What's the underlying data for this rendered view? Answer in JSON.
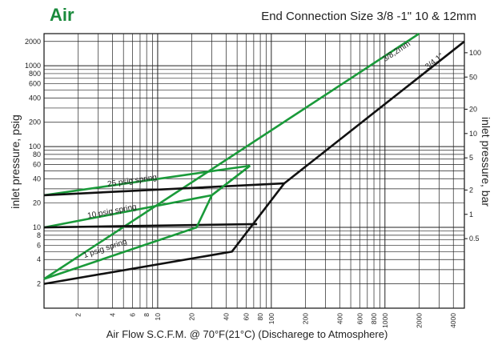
{
  "title": "Air",
  "subtitle": "End Connection Size 3/8 -1\"  10 & 12mm",
  "chart_data": {
    "type": "line",
    "xlabel": "Air Flow S.C.F.M. @ 70°F(21°C) (Discharege to Atmosphere)",
    "ylabel": "inlet pressure, psig",
    "ylabel_right": "inlet pressure, bar",
    "x_scale": "log",
    "y_scale": "log",
    "xlim": [
      1,
      5000
    ],
    "ylim": [
      1,
      2500
    ],
    "x_ticks": [
      "2",
      "4",
      "6",
      "8",
      "10",
      "20",
      "40",
      "60",
      "80",
      "100",
      "200",
      "400",
      "600",
      "800",
      "1000",
      "2000",
      "4000"
    ],
    "y_ticks": [
      "2",
      "4",
      "6",
      "8",
      "10",
      "20",
      "40",
      "60",
      "80",
      "100",
      "200",
      "400",
      "600",
      "800",
      "1000",
      "2000"
    ],
    "y_ticks_right": [
      "0.5",
      "1",
      "2",
      "5",
      "10",
      "20",
      "50",
      "100"
    ],
    "grid": true,
    "series": [
      {
        "name": "3/4,1\"",
        "color": "#111111",
        "x": [
          1,
          45,
          130,
          5000
        ],
        "y": [
          2,
          5,
          35,
          2000
        ]
      },
      {
        "name": "3/8,2mm",
        "color": "#1a9a3a",
        "x": [
          1,
          2000
        ],
        "y": [
          2.3,
          2500
        ]
      },
      {
        "name": "25 psig spring",
        "color": "#1a9a3a",
        "x": [
          1,
          65
        ],
        "y": [
          25,
          58
        ]
      },
      {
        "name": "",
        "color": "#111111",
        "x": [
          1,
          130
        ],
        "y": [
          25,
          35
        ]
      },
      {
        "name": "10 psig spring",
        "color": "#1a9a3a",
        "x": [
          1,
          30,
          65
        ],
        "y": [
          10,
          25,
          58
        ]
      },
      {
        "name": "",
        "color": "#111111",
        "x": [
          1,
          75
        ],
        "y": [
          10,
          11
        ]
      },
      {
        "name": "1 psig spring",
        "color": "#1a9a3a",
        "x": [
          1,
          22,
          30,
          65
        ],
        "y": [
          2.3,
          10,
          25,
          58
        ]
      }
    ]
  }
}
